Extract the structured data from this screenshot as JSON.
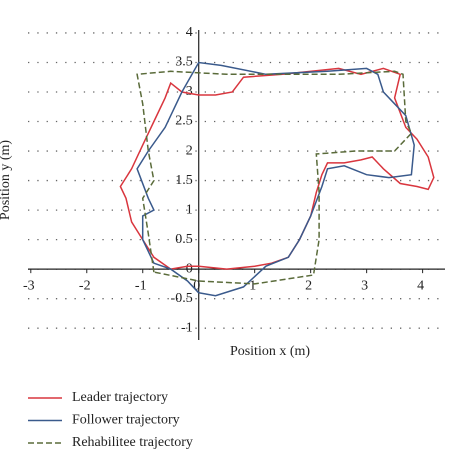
{
  "chart_data": {
    "type": "line",
    "x_label": "Position x (m)",
    "y_label": "Position y (m)",
    "xlim": [
      -3.05,
      4.4
    ],
    "ylim": [
      -1.2,
      4.05
    ],
    "xticks": [
      -3,
      -2,
      -1,
      0,
      1,
      2,
      3,
      4
    ],
    "yticks": [
      -1,
      -0.5,
      0,
      0.5,
      1,
      1.5,
      2,
      2.5,
      3,
      3.5,
      4
    ],
    "grid": true,
    "series": [
      {
        "name": "Leader trajectory",
        "color": "#d9363e",
        "dash": false,
        "x": [
          0,
          0.5,
          1,
          1.3,
          1.6,
          1.8,
          2.0,
          2.1,
          2.2,
          2.3,
          2.6,
          2.9,
          3.1,
          3.3,
          3.6,
          3.9,
          4.1,
          4.2,
          4.1,
          3.9,
          3.7,
          3.5,
          3.6,
          3.3,
          2.9,
          2.5,
          1.5,
          0.8,
          0.6,
          0.3,
          0,
          -0.3,
          -0.5,
          -0.6,
          -0.8,
          -1.0,
          -1.2,
          -1.4,
          -1.3,
          -1.2,
          -1.0,
          -0.8,
          -0.5,
          -0.2,
          0
        ],
        "values": [
          0.05,
          0,
          0.05,
          0.1,
          0.2,
          0.5,
          0.9,
          1.3,
          1.6,
          1.8,
          1.8,
          1.85,
          1.9,
          1.7,
          1.45,
          1.4,
          1.35,
          1.55,
          1.9,
          2.2,
          2.4,
          2.9,
          3.3,
          3.4,
          3.3,
          3.4,
          3.3,
          3.25,
          3.0,
          2.95,
          2.95,
          3.0,
          3.15,
          2.9,
          2.5,
          2.1,
          1.7,
          1.4,
          1.2,
          0.8,
          0.5,
          0.2,
          0.0,
          0.05,
          0.05
        ]
      },
      {
        "name": "Follower trajectory",
        "color": "#3a5a8c",
        "dash": false,
        "x": [
          0,
          0.3,
          0.8,
          1.2,
          1.6,
          1.8,
          2.0,
          2.2,
          2.3,
          2.6,
          3.0,
          3.4,
          3.8,
          3.85,
          3.7,
          3.5,
          3.3,
          3.2,
          3.0,
          2.3,
          1.2,
          0.4,
          0,
          -0.3,
          -0.6,
          -0.9,
          -1.1,
          -0.9,
          -0.8,
          -1.0,
          -1.0,
          -0.8,
          -0.5,
          -0.2,
          0
        ],
        "values": [
          -0.4,
          -0.45,
          -0.3,
          0.05,
          0.2,
          0.5,
          0.9,
          1.4,
          1.7,
          1.75,
          1.6,
          1.55,
          1.6,
          2.1,
          2.6,
          2.8,
          3.0,
          3.3,
          3.4,
          3.35,
          3.3,
          3.45,
          3.5,
          3.0,
          2.4,
          2.0,
          1.7,
          1.2,
          1.0,
          0.9,
          0.5,
          0.1,
          0.0,
          -0.2,
          -0.4
        ]
      },
      {
        "name": "Rehabilitee trajectory",
        "color": "#5a6b3a",
        "dash": true,
        "x": [
          -0.8,
          -0.9,
          -1.0,
          -0.8,
          -0.9,
          -1.0,
          -1.1,
          -0.5,
          0.5,
          1.5,
          2.5,
          3.5,
          3.65,
          3.7,
          3.8,
          3.5,
          2.8,
          2.1,
          2.15,
          2.15,
          2.05,
          1.0,
          0,
          -0.8
        ],
        "values": [
          -0.05,
          0.6,
          1.2,
          1.5,
          2.0,
          2.8,
          3.3,
          3.35,
          3.3,
          3.3,
          3.3,
          3.35,
          3.3,
          2.5,
          2.3,
          2.0,
          2.0,
          1.95,
          1.3,
          0.5,
          -0.1,
          -0.25,
          -0.2,
          -0.05
        ]
      }
    ]
  }
}
